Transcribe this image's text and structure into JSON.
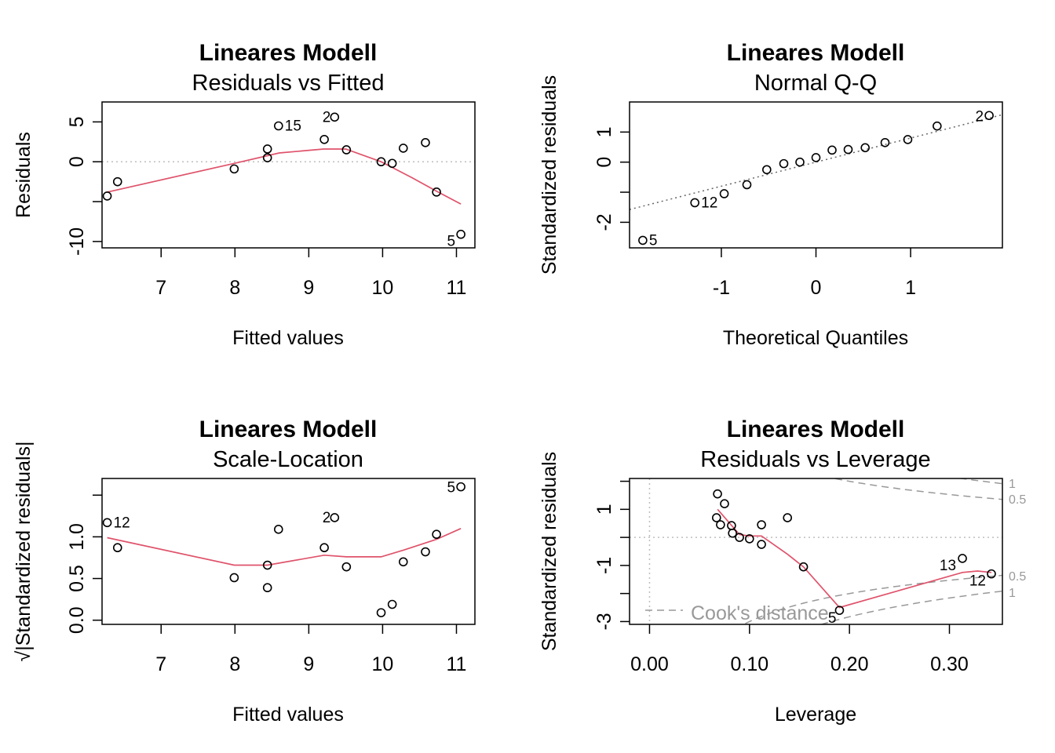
{
  "chart_data": [
    {
      "type": "scatter",
      "title": "Lineares Modell",
      "subtitle": "Residuals vs Fitted",
      "xlabel": "Fitted values",
      "ylabel": "Residuals",
      "xlim": [
        6.2,
        11.25
      ],
      "ylim": [
        -10.8,
        7.5
      ],
      "xticks": [
        "7",
        "8",
        "9",
        "10",
        "11"
      ],
      "yticks": [
        "-10",
        "0",
        "5"
      ],
      "reference_line": 0,
      "points": [
        {
          "x": 6.27,
          "y": -4.3
        },
        {
          "x": 6.41,
          "y": -2.5
        },
        {
          "x": 7.99,
          "y": -0.9
        },
        {
          "x": 8.44,
          "y": 0.5
        },
        {
          "x": 8.44,
          "y": 1.6
        },
        {
          "x": 8.59,
          "y": 4.5,
          "label": "15"
        },
        {
          "x": 9.21,
          "y": 2.8
        },
        {
          "x": 9.35,
          "y": 5.6,
          "label": "2"
        },
        {
          "x": 9.51,
          "y": 1.5
        },
        {
          "x": 9.98,
          "y": 0.0
        },
        {
          "x": 10.13,
          "y": -0.2
        },
        {
          "x": 10.28,
          "y": 1.7
        },
        {
          "x": 10.58,
          "y": 2.4
        },
        {
          "x": 10.73,
          "y": -3.8
        },
        {
          "x": 11.06,
          "y": -9.1,
          "label": "5"
        }
      ],
      "smoother": [
        [
          6.27,
          -3.8
        ],
        [
          7.99,
          -0.2
        ],
        [
          8.6,
          1.1
        ],
        [
          9.2,
          1.6
        ],
        [
          9.5,
          1.6
        ],
        [
          9.98,
          0.0
        ],
        [
          10.4,
          -2.0
        ],
        [
          10.73,
          -3.7
        ],
        [
          11.06,
          -5.3
        ]
      ]
    },
    {
      "type": "scatter",
      "title": "Lineares Modell",
      "subtitle": "Normal Q-Q",
      "xlabel": "Theoretical Quantiles",
      "ylabel": "Standardized residuals",
      "xlim": [
        -1.97,
        1.97
      ],
      "ylim": [
        -2.85,
        2.0
      ],
      "xticks": [
        "-1",
        "0",
        "1"
      ],
      "yticks": [
        "-2",
        "0",
        "1"
      ],
      "reference_line": {
        "intercept": 0.0,
        "slope": 0.8
      },
      "points": [
        {
          "x": -1.83,
          "y": -2.6,
          "label": "5"
        },
        {
          "x": -1.28,
          "y": -1.35,
          "label": "12"
        },
        {
          "x": -0.97,
          "y": -1.05
        },
        {
          "x": -0.73,
          "y": -0.75
        },
        {
          "x": -0.52,
          "y": -0.25
        },
        {
          "x": -0.34,
          "y": -0.05
        },
        {
          "x": -0.17,
          "y": 0.0
        },
        {
          "x": 0.0,
          "y": 0.15
        },
        {
          "x": 0.17,
          "y": 0.4
        },
        {
          "x": 0.34,
          "y": 0.42
        },
        {
          "x": 0.52,
          "y": 0.48
        },
        {
          "x": 0.73,
          "y": 0.65
        },
        {
          "x": 0.97,
          "y": 0.75
        },
        {
          "x": 1.28,
          "y": 1.2
        },
        {
          "x": 1.83,
          "y": 1.55,
          "label": "2"
        }
      ]
    },
    {
      "type": "scatter",
      "title": "Lineares Modell",
      "subtitle": "Scale-Location",
      "xlabel": "Fitted values",
      "ylabel": "√|Standardized residuals|",
      "xlim": [
        6.2,
        11.25
      ],
      "ylim": [
        -0.05,
        1.7
      ],
      "xticks": [
        "7",
        "8",
        "9",
        "10",
        "11"
      ],
      "yticks": [
        "0.0",
        "0.5",
        "1.0"
      ],
      "points": [
        {
          "x": 6.27,
          "y": 1.17,
          "label": "12"
        },
        {
          "x": 6.41,
          "y": 0.87
        },
        {
          "x": 7.99,
          "y": 0.51
        },
        {
          "x": 8.44,
          "y": 0.39
        },
        {
          "x": 8.44,
          "y": 0.66
        },
        {
          "x": 8.59,
          "y": 1.09
        },
        {
          "x": 9.21,
          "y": 0.87
        },
        {
          "x": 9.35,
          "y": 1.23,
          "label": "2"
        },
        {
          "x": 9.51,
          "y": 0.64
        },
        {
          "x": 9.98,
          "y": 0.09
        },
        {
          "x": 10.13,
          "y": 0.19
        },
        {
          "x": 10.28,
          "y": 0.7
        },
        {
          "x": 10.58,
          "y": 0.82
        },
        {
          "x": 10.73,
          "y": 1.03
        },
        {
          "x": 11.06,
          "y": 1.6,
          "label": "5"
        }
      ],
      "smoother": [
        [
          6.27,
          0.99
        ],
        [
          7.99,
          0.66
        ],
        [
          8.44,
          0.66
        ],
        [
          9.21,
          0.78
        ],
        [
          9.51,
          0.76
        ],
        [
          9.98,
          0.76
        ],
        [
          10.28,
          0.84
        ],
        [
          10.73,
          0.97
        ],
        [
          11.06,
          1.1
        ]
      ]
    },
    {
      "type": "scatter",
      "title": "Lineares Modell",
      "subtitle": "Residuals vs Leverage",
      "xlabel": "Leverage",
      "ylabel": "Standardized residuals",
      "xlim": [
        -0.02,
        0.353
      ],
      "ylim": [
        -3.1,
        2.1
      ],
      "xticks": [
        "0.00",
        "0.10",
        "0.20",
        "0.30"
      ],
      "yticks": [
        "-3",
        "-1",
        "1"
      ],
      "reference_line": 0,
      "legend_text": "Cook's distance",
      "legend_position": "bottom-left",
      "contour_labels": [
        "1",
        "0.5",
        "0.5",
        "1"
      ],
      "points": [
        {
          "x": 0.068,
          "y": 1.55
        },
        {
          "x": 0.075,
          "y": 1.2
        },
        {
          "x": 0.067,
          "y": 0.7
        },
        {
          "x": 0.071,
          "y": 0.45
        },
        {
          "x": 0.082,
          "y": 0.42
        },
        {
          "x": 0.083,
          "y": 0.15
        },
        {
          "x": 0.09,
          "y": 0.0
        },
        {
          "x": 0.1,
          "y": -0.05
        },
        {
          "x": 0.112,
          "y": 0.45
        },
        {
          "x": 0.112,
          "y": -0.25
        },
        {
          "x": 0.138,
          "y": 0.7
        },
        {
          "x": 0.154,
          "y": -1.05
        },
        {
          "x": 0.19,
          "y": -2.6,
          "label": "5"
        },
        {
          "x": 0.313,
          "y": -0.75,
          "label": "13"
        },
        {
          "x": 0.342,
          "y": -1.3,
          "label": "12"
        }
      ],
      "smoother": [
        [
          0.068,
          1.0
        ],
        [
          0.09,
          0.1
        ],
        [
          0.1,
          0.05
        ],
        [
          0.112,
          0.05
        ],
        [
          0.138,
          -0.6
        ],
        [
          0.154,
          -1.05
        ],
        [
          0.19,
          -2.5
        ],
        [
          0.313,
          -1.25
        ],
        [
          0.328,
          -1.2
        ],
        [
          0.342,
          -1.25
        ]
      ]
    }
  ]
}
